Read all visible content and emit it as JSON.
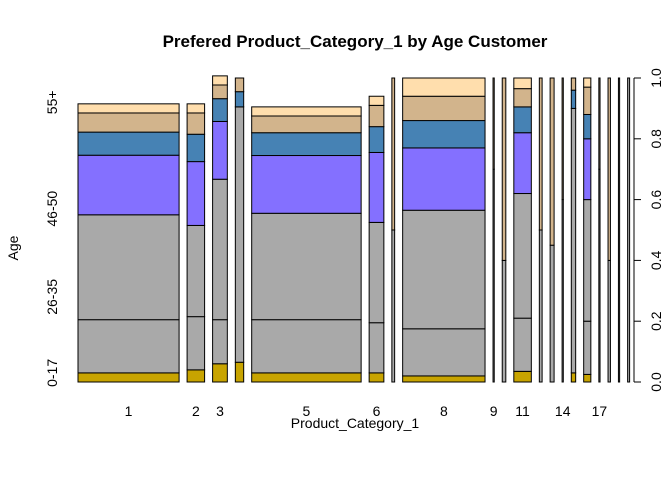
{
  "chart_data": {
    "type": "mosaic",
    "title": "Prefered Product_Category_1 by Age Customer",
    "xlabel": "Product_Category_1",
    "ylabel": "Age",
    "ylim": [
      0,
      1
    ],
    "right_axis_ticks": [
      "0.0",
      "0.2",
      "0.4",
      "0.6",
      "0.8",
      "1.0"
    ],
    "left_axis_labels": [
      {
        "label": "0-17",
        "at": 0.03
      },
      {
        "label": "26-35",
        "at": 0.28
      },
      {
        "label": "46-50",
        "at": 0.57
      },
      {
        "label": "55+",
        "at": 0.92
      }
    ],
    "x_tick_labels": [
      "1",
      "2",
      "3",
      "5",
      "6",
      "8",
      "9",
      "11",
      "14",
      "17"
    ],
    "segment_colors": [
      "#C8A400",
      "#A9A9A9",
      "#A9A9A9",
      "#A9A9A9",
      "#8470FF",
      "#4682B4",
      "#D2B48C",
      "#FFDEAD"
    ],
    "categories": [
      {
        "name": "1",
        "label": "1",
        "share": 0.254,
        "segments": [
          0.03,
          0.175,
          0.0,
          0.345,
          0.196,
          0.076,
          0.063,
          0.03
        ]
      },
      {
        "name": "2",
        "label": "2",
        "share": 0.044,
        "segments": [
          0.04,
          0.175,
          0.0,
          0.3,
          0.21,
          0.09,
          0.07,
          0.03
        ]
      },
      {
        "name": "3",
        "label": "3",
        "share": 0.037,
        "segments": [
          0.06,
          0.145,
          0.0,
          0.462,
          0.19,
          0.075,
          0.045,
          0.03
        ]
      },
      {
        "name": "4",
        "label": "",
        "share": 0.021,
        "segments": [
          0.065,
          0.84,
          0.0,
          0.0,
          0.0,
          0.05,
          0.045,
          0.0
        ]
      },
      {
        "name": "5",
        "label": "5",
        "share": 0.275,
        "segments": [
          0.03,
          0.175,
          0.0,
          0.35,
          0.19,
          0.075,
          0.055,
          0.03
        ]
      },
      {
        "name": "6",
        "label": "6",
        "share": 0.037,
        "segments": [
          0.03,
          0.165,
          0.0,
          0.33,
          0.23,
          0.085,
          0.07,
          0.03
        ]
      },
      {
        "name": "7",
        "label": "",
        "share": 0.007,
        "segments": [
          0.0,
          0.5,
          0.0,
          0.0,
          0.0,
          0.0,
          0.5,
          0.0
        ]
      },
      {
        "name": "8",
        "label": "8",
        "share": 0.207,
        "segments": [
          0.02,
          0.155,
          0.0,
          0.39,
          0.205,
          0.09,
          0.08,
          0.06
        ]
      },
      {
        "name": "9",
        "label": "9",
        "share": 0.001,
        "segments": [
          0.0,
          0.7,
          0.0,
          0.0,
          0.0,
          0.0,
          0.3,
          0.0
        ]
      },
      {
        "name": "10",
        "label": "",
        "share": 0.009,
        "segments": [
          0.0,
          0.4,
          0.0,
          0.0,
          0.0,
          0.0,
          0.6,
          0.0
        ]
      },
      {
        "name": "11",
        "label": "11",
        "share": 0.044,
        "segments": [
          0.035,
          0.175,
          0.0,
          0.41,
          0.2,
          0.085,
          0.06,
          0.035
        ]
      },
      {
        "name": "12",
        "label": "",
        "share": 0.007,
        "segments": [
          0.0,
          0.5,
          0.0,
          0.0,
          0.0,
          0.0,
          0.5,
          0.0
        ]
      },
      {
        "name": "13",
        "label": "",
        "share": 0.01,
        "segments": [
          0.0,
          0.45,
          0.0,
          0.0,
          0.0,
          0.0,
          0.55,
          0.0
        ]
      },
      {
        "name": "14",
        "label": "14",
        "share": 0.003,
        "segments": [
          0.0,
          0.6,
          0.0,
          0.0,
          0.0,
          0.0,
          0.4,
          0.0
        ]
      },
      {
        "name": "15",
        "label": "",
        "share": 0.011,
        "segments": [
          0.03,
          0.87,
          0.0,
          0.0,
          0.0,
          0.06,
          0.04,
          0.0
        ]
      },
      {
        "name": "16",
        "label": "",
        "share": 0.018,
        "segments": [
          0.025,
          0.175,
          0.0,
          0.4,
          0.2,
          0.08,
          0.09,
          0.03
        ]
      },
      {
        "name": "17",
        "label": "17",
        "share": 0.001,
        "segments": [
          0.0,
          0.7,
          0.0,
          0.0,
          0.0,
          0.0,
          0.3,
          0.0
        ]
      },
      {
        "name": "18",
        "label": "",
        "share": 0.006,
        "segments": [
          0.0,
          0.4,
          0.0,
          0.0,
          0.0,
          0.0,
          0.6,
          0.0
        ]
      },
      {
        "name": "19",
        "label": "",
        "share": 0.003,
        "segments": [
          0.0,
          1.0,
          0.0,
          0.0,
          0.0,
          0.0,
          0.0,
          0.0
        ]
      },
      {
        "name": "20",
        "label": "",
        "share": 0.005,
        "segments": [
          0.0,
          1.0,
          0.0,
          0.0,
          0.0,
          0.0,
          0.0,
          0.0
        ]
      }
    ]
  }
}
